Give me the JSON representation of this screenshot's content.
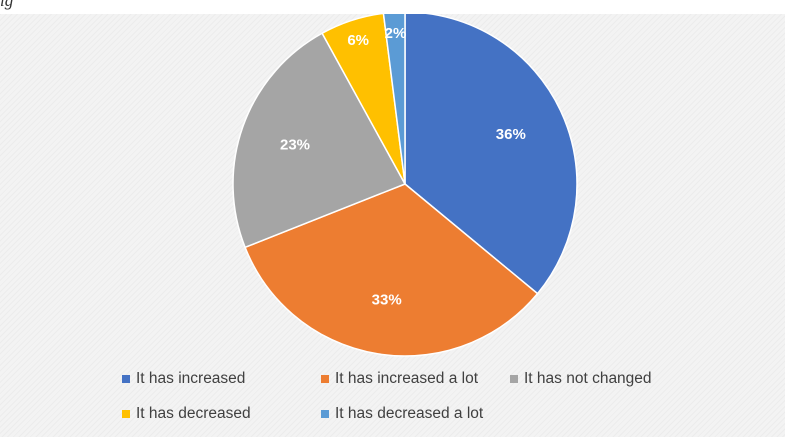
{
  "caption": "ig",
  "chart_data": {
    "type": "pie",
    "slices": [
      {
        "label": "It has increased",
        "value": 36,
        "display": "36%",
        "color": "#4472c4"
      },
      {
        "label": "It has increased a lot",
        "value": 33,
        "display": "33%",
        "color": "#ed7d31"
      },
      {
        "label": "It has not changed",
        "value": 23,
        "display": "23%",
        "color": "#a5a5a5"
      },
      {
        "label": "It has decreased",
        "value": 6,
        "display": "6%",
        "color": "#ffc000"
      },
      {
        "label": "It has decreased a lot",
        "value": 2,
        "display": "2%",
        "color": "#5b9bd5"
      }
    ],
    "legend_position": "bottom"
  }
}
